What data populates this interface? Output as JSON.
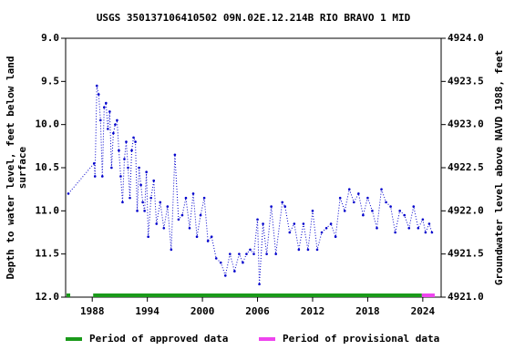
{
  "chart_data": {
    "type": "line",
    "title": "USGS 350137106410502 09N.02E.12.214B RIO BRAVO 1 MID",
    "ylabel_lines": [
      "Depth to water level, feet below land",
      "surface"
    ],
    "y2label": "Groundwater level above NAVD 1988, feet",
    "xlim": [
      1985.1,
      2026.0
    ],
    "xticks": [
      1988,
      1994,
      2000,
      2006,
      2012,
      2018,
      2024
    ],
    "ylim": [
      12.0,
      9.0
    ],
    "yticks": [
      {
        "value": 9.0,
        "label": "9.0"
      },
      {
        "value": 9.5,
        "label": "9.5"
      },
      {
        "value": 10.0,
        "label": "10.0"
      },
      {
        "value": 10.5,
        "label": "10.5"
      },
      {
        "value": 11.0,
        "label": "11.0"
      },
      {
        "value": 11.5,
        "label": "11.5"
      },
      {
        "value": 12.0,
        "label": "12.0"
      }
    ],
    "y2lim": [
      4921.0,
      4924.0
    ],
    "y2ticks": [
      {
        "value": 4924.0,
        "label": "4924.0"
      },
      {
        "value": 4923.5,
        "label": "4923.5"
      },
      {
        "value": 4923.0,
        "label": "4923.0"
      },
      {
        "value": 4922.5,
        "label": "4922.5"
      },
      {
        "value": 4922.0,
        "label": "4922.0"
      },
      {
        "value": 4921.5,
        "label": "4921.5"
      },
      {
        "value": 4921.0,
        "label": "4921.0"
      }
    ],
    "series": [
      {
        "color": "#0000cc",
        "x": [
          1985.4,
          1988.2,
          1988.3,
          1988.5,
          1988.7,
          1988.9,
          1989.1,
          1989.3,
          1989.5,
          1989.7,
          1989.9,
          1990.1,
          1990.3,
          1990.5,
          1990.7,
          1990.9,
          1991.1,
          1991.3,
          1991.5,
          1991.7,
          1991.9,
          1992.1,
          1992.3,
          1992.5,
          1992.7,
          1992.9,
          1993.1,
          1993.3,
          1993.5,
          1993.7,
          1993.9,
          1994.1,
          1994.4,
          1994.7,
          1995.0,
          1995.4,
          1995.8,
          1996.2,
          1996.6,
          1997.0,
          1997.4,
          1997.8,
          1998.2,
          1998.6,
          1999.0,
          1999.4,
          1999.8,
          2000.2,
          2000.6,
          2001.0,
          2001.5,
          2002.0,
          2002.5,
          2003.0,
          2003.5,
          2004.0,
          2004.4,
          2004.8,
          2005.2,
          2005.6,
          2006.0,
          2006.2,
          2006.6,
          2007.0,
          2007.5,
          2008.0,
          2008.7,
          2009.0,
          2009.5,
          2010.0,
          2010.5,
          2011.0,
          2011.5,
          2012.0,
          2012.5,
          2013.0,
          2013.5,
          2014.0,
          2014.5,
          2015.0,
          2015.5,
          2016.0,
          2016.5,
          2017.0,
          2017.5,
          2018.0,
          2018.5,
          2019.0,
          2019.5,
          2020.0,
          2020.5,
          2021.0,
          2021.5,
          2022.0,
          2022.5,
          2023.0,
          2023.5,
          2024.0,
          2024.3,
          2024.7,
          2025.0
        ],
        "values": [
          10.8,
          10.45,
          10.6,
          9.55,
          9.65,
          9.95,
          10.6,
          9.8,
          9.75,
          10.05,
          9.85,
          10.5,
          10.1,
          10.0,
          9.95,
          10.3,
          10.6,
          10.9,
          10.4,
          10.2,
          10.5,
          10.85,
          10.3,
          10.15,
          10.2,
          11.0,
          10.5,
          10.7,
          10.9,
          11.0,
          10.55,
          11.3,
          10.85,
          10.65,
          11.15,
          10.9,
          11.2,
          10.95,
          11.45,
          10.35,
          11.1,
          11.05,
          10.85,
          11.2,
          10.8,
          11.3,
          11.05,
          10.85,
          11.35,
          11.3,
          11.55,
          11.6,
          11.75,
          11.5,
          11.7,
          11.5,
          11.6,
          11.5,
          11.45,
          11.5,
          11.1,
          11.85,
          11.15,
          11.5,
          10.95,
          11.5,
          10.9,
          10.95,
          11.25,
          11.15,
          11.45,
          11.15,
          11.45,
          11.0,
          11.45,
          11.25,
          11.2,
          11.15,
          11.3,
          10.85,
          11.0,
          10.75,
          10.9,
          10.8,
          11.05,
          10.85,
          11.0,
          11.2,
          10.75,
          10.9,
          10.95,
          11.25,
          11.0,
          11.05,
          11.2,
          10.95,
          11.2,
          11.1,
          11.25,
          11.15,
          11.25
        ]
      }
    ],
    "periods": [
      {
        "name": "Period of approved data",
        "color": "#1a9a1a",
        "ranges": [
          [
            1985.2,
            1985.6
          ],
          [
            1988.1,
            2023.9
          ]
        ]
      },
      {
        "name": "Period of provisional data",
        "color": "#ee44ee",
        "ranges": [
          [
            2023.9,
            2025.3
          ]
        ]
      }
    ]
  }
}
